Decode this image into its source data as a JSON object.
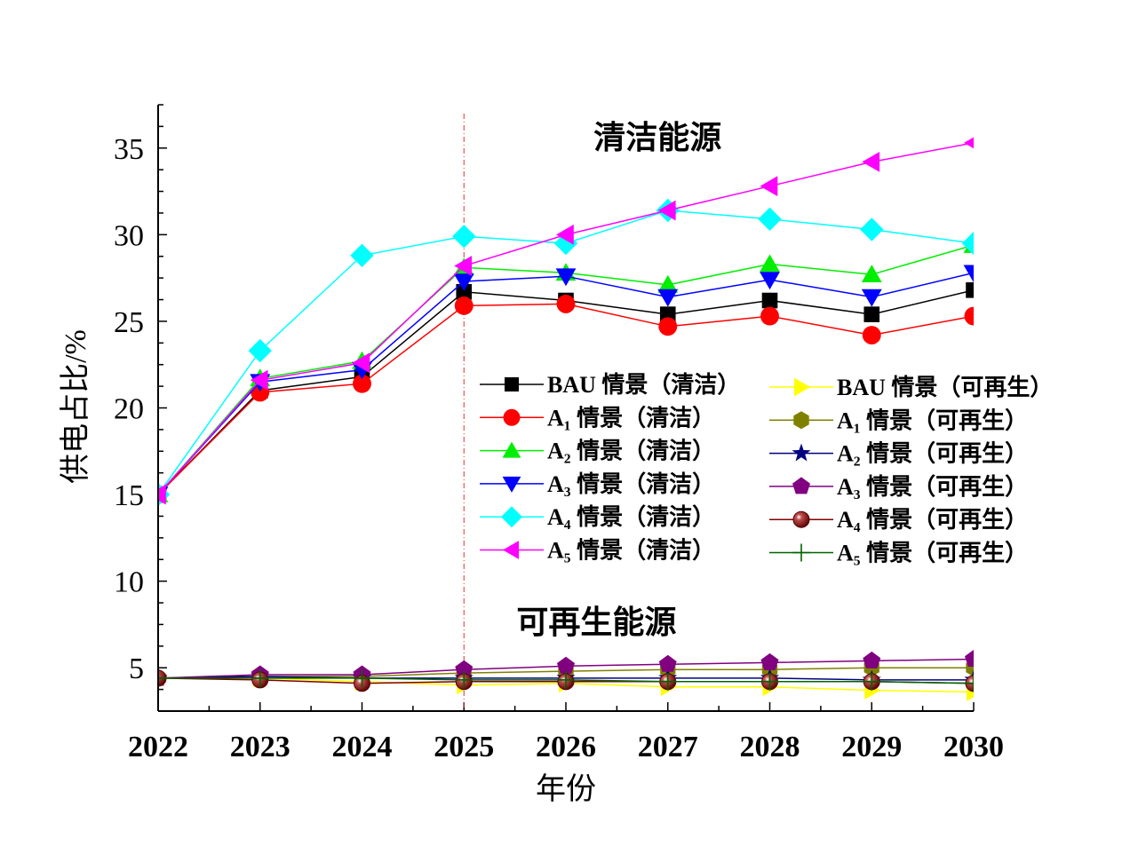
{
  "chart_data": {
    "type": "line",
    "xlabel": "年份",
    "ylabel": "供电占比/%",
    "x": [
      2022,
      2023,
      2024,
      2025,
      2026,
      2027,
      2028,
      2029,
      2030
    ],
    "xlim": [
      2022,
      2030
    ],
    "ylim": [
      2.5,
      37.5
    ],
    "yticks": [
      5,
      10,
      15,
      20,
      25,
      30,
      35
    ],
    "grid": false,
    "legend_position": "center-right, two columns",
    "divider_x": 2025,
    "annotations": [
      {
        "text": "清洁能源",
        "x": 2026.9,
        "y": 35.0
      },
      {
        "text": "可再生能源",
        "x": 2026.3,
        "y": 7.0
      }
    ],
    "series": [
      {
        "name": "BAU 情景（清洁）",
        "marker": "square",
        "color": "#000000",
        "values": [
          15.0,
          21.0,
          21.8,
          26.7,
          26.2,
          25.4,
          26.2,
          25.4,
          26.8
        ]
      },
      {
        "name": "A₁ 情景（清洁）",
        "marker": "circle",
        "color": "#ff0000",
        "values": [
          15.0,
          20.9,
          21.4,
          25.9,
          26.0,
          24.7,
          25.3,
          24.2,
          25.3
        ]
      },
      {
        "name": "A₂ 情景（清洁）",
        "marker": "triangle-up",
        "color": "#00ee00",
        "values": [
          15.0,
          21.7,
          22.7,
          28.1,
          27.8,
          27.1,
          28.3,
          27.7,
          29.4
        ]
      },
      {
        "name": "A₃ 情景（清洁）",
        "marker": "triangle-down",
        "color": "#0000ff",
        "values": [
          15.0,
          21.5,
          22.2,
          27.3,
          27.6,
          26.4,
          27.4,
          26.4,
          27.8
        ]
      },
      {
        "name": "A₄ 情景（清洁）",
        "marker": "diamond",
        "color": "#00ffff",
        "values": [
          15.0,
          23.3,
          28.8,
          29.9,
          29.5,
          31.4,
          30.9,
          30.3,
          29.5
        ]
      },
      {
        "name": "A₅ 情景（清洁）",
        "marker": "triangle-left",
        "color": "#ff00ff",
        "values": [
          15.0,
          21.6,
          22.6,
          28.2,
          30.0,
          31.4,
          32.8,
          34.2,
          35.3
        ]
      },
      {
        "name": "BAU 情景（可再生）",
        "marker": "triangle-right",
        "color": "#ffff00",
        "values": [
          4.4,
          4.4,
          4.2,
          4.0,
          4.1,
          3.9,
          3.9,
          3.7,
          3.6
        ]
      },
      {
        "name": "A₁ 情景（可再生）",
        "marker": "hexagon",
        "color": "#808000",
        "values": [
          4.4,
          4.5,
          4.5,
          4.7,
          4.8,
          4.9,
          4.9,
          5.0,
          5.0
        ]
      },
      {
        "name": "A₂ 情景（可再生）",
        "marker": "star",
        "color": "#000080",
        "values": [
          4.4,
          4.5,
          4.4,
          4.4,
          4.4,
          4.4,
          4.4,
          4.3,
          4.3
        ]
      },
      {
        "name": "A₃ 情景（可再生）",
        "marker": "pentagon",
        "color": "#800080",
        "values": [
          4.4,
          4.6,
          4.6,
          4.9,
          5.1,
          5.2,
          5.3,
          5.4,
          5.5
        ]
      },
      {
        "name": "A₄ 情景（可再生）",
        "marker": "ball",
        "color": "#800000",
        "values": [
          4.4,
          4.3,
          4.1,
          4.2,
          4.2,
          4.2,
          4.2,
          4.2,
          4.1
        ]
      },
      {
        "name": "A₅ 情景（可再生）",
        "marker": "plus",
        "color": "#006400",
        "values": [
          4.4,
          4.4,
          4.4,
          4.3,
          4.3,
          4.2,
          4.2,
          4.2,
          4.1
        ]
      }
    ]
  }
}
